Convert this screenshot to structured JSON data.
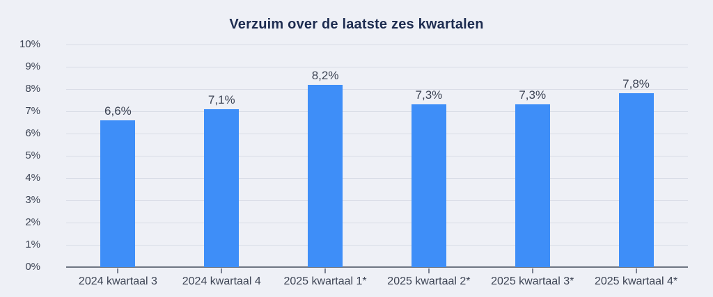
{
  "chart_data": {
    "type": "bar",
    "title": "Verzuim over de laatste zes kwartalen",
    "categories": [
      "2024 kwartaal 3",
      "2024 kwartaal 4",
      "2025 kwartaal 1*",
      "2025 kwartaal 2*",
      "2025 kwartaal 3*",
      "2025 kwartaal 4*"
    ],
    "values": [
      6.6,
      7.1,
      8.2,
      7.3,
      7.3,
      7.8
    ],
    "value_labels": [
      "6,6%",
      "7,1%",
      "8,2%",
      "7,3%",
      "7,3%",
      "7,8%"
    ],
    "xlabel": "",
    "ylabel": "",
    "ylim": [
      0,
      10
    ],
    "y_tick_step": 1,
    "y_tick_labels": [
      "0%",
      "1%",
      "2%",
      "3%",
      "4%",
      "5%",
      "6%",
      "7%",
      "8%",
      "9%",
      "10%"
    ],
    "grid": true,
    "legend_position": "none",
    "colors": {
      "background": "#eef0f6",
      "bar_fill": "#3e8ef8",
      "gridline": "#d8dce6",
      "axis_line": "#6e7582",
      "tick_mark": "#7a8090",
      "title_text": "#1d2c50",
      "label_text": "#3d4454"
    }
  }
}
